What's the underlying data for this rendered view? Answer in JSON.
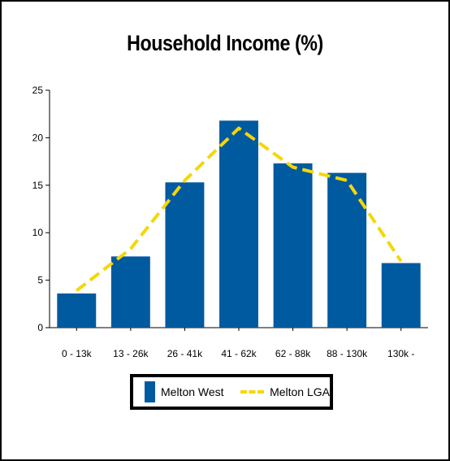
{
  "title": "Household Income (%)",
  "colors": {
    "bar": "#005AA0",
    "line": "#F5D60A",
    "axis": "#000000",
    "frame": "#000000"
  },
  "legend": {
    "placement": "bottom-center",
    "bar_label": "Melton West",
    "line_label": "Melton LGA"
  },
  "chart_data": {
    "type": "bar",
    "title": "Household Income (%)",
    "xlabel": "",
    "ylabel": "",
    "ylim": [
      0,
      25
    ],
    "yticks": [
      0,
      5,
      10,
      15,
      20,
      25
    ],
    "grid": false,
    "categories": [
      "0 - 13k",
      "13 - 26k",
      "26 - 41k",
      "41 - 62k",
      "62 - 88k",
      "88 - 130k",
      "130k -"
    ],
    "series": [
      {
        "name": "Melton West",
        "type": "bar",
        "values": [
          3.6,
          7.5,
          15.3,
          21.8,
          17.3,
          16.3,
          6.8
        ]
      },
      {
        "name": "Melton LGA",
        "type": "line",
        "style": "dashed",
        "values": [
          3.9,
          8.3,
          15.5,
          21.0,
          16.9,
          15.5,
          7.0
        ]
      }
    ]
  }
}
